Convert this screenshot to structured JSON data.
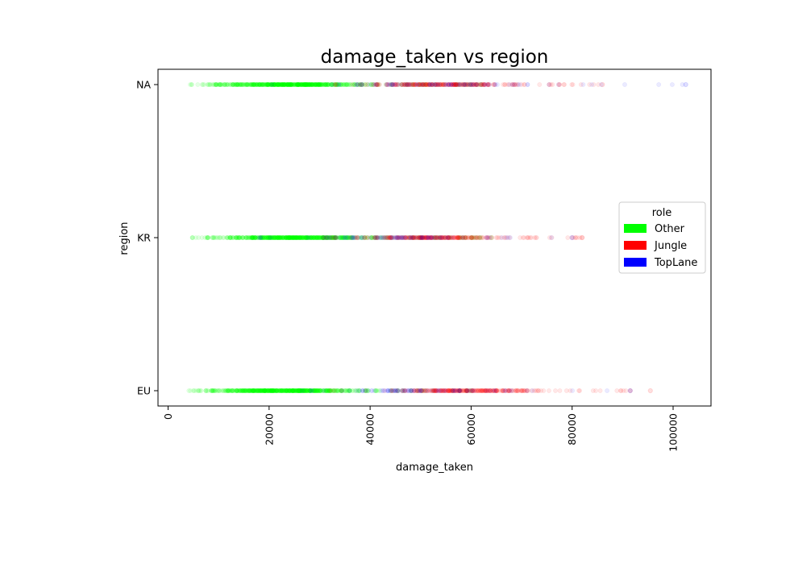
{
  "chart_data": {
    "type": "scatter",
    "title": "damage_taken vs region",
    "xlabel": "damage_taken",
    "ylabel": "region",
    "xlim": [
      -2000,
      107500
    ],
    "x_ticks": [
      0,
      20000,
      40000,
      60000,
      80000,
      100000
    ],
    "x_tick_labels": [
      "0",
      "20000",
      "40000",
      "60000",
      "80000",
      "100000"
    ],
    "categories": [
      "EU",
      "KR",
      "NA"
    ],
    "legend": {
      "title": "role",
      "placement": "center-right"
    },
    "series": [
      {
        "name": "Other",
        "color": "#00ff00",
        "points": [
          {
            "region": "NA",
            "range": [
              4000,
              62000
            ],
            "density": "high"
          },
          {
            "region": "KR",
            "range": [
              4500,
              64000
            ],
            "density": "high"
          },
          {
            "region": "EU",
            "range": [
              3500,
              60000
            ],
            "density": "high"
          }
        ]
      },
      {
        "name": "Jungle",
        "color": "#ff0000",
        "points": [
          {
            "region": "NA",
            "range": [
              30000,
              86000
            ],
            "density": "medium"
          },
          {
            "region": "KR",
            "range": [
              30000,
              82000
            ],
            "density": "medium"
          },
          {
            "region": "EU",
            "range": [
              32000,
              95500
            ],
            "density": "medium"
          }
        ]
      },
      {
        "name": "TopLane",
        "color": "#0000ff",
        "points": [
          {
            "region": "NA",
            "range": [
              20000,
              102500
            ],
            "density": "low"
          },
          {
            "region": "KR",
            "range": [
              18000,
              80000
            ],
            "density": "low"
          },
          {
            "region": "EU",
            "range": [
              18000,
              91500
            ],
            "density": "low"
          }
        ]
      }
    ]
  }
}
